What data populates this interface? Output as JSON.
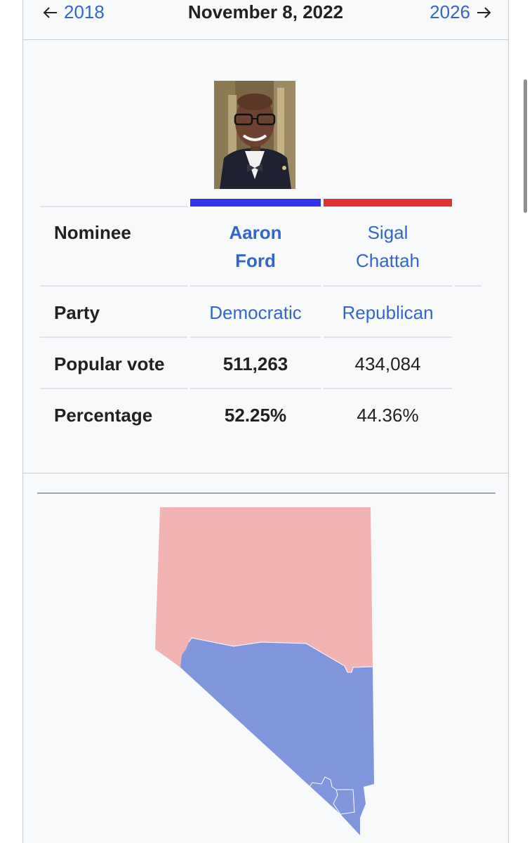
{
  "nav": {
    "prev_label": "2018",
    "date": "November 8, 2022",
    "next_label": "2026"
  },
  "candidates": {
    "row_labels": {
      "nominee": "Nominee",
      "party": "Party",
      "popular_vote": "Popular vote",
      "percentage": "Percentage"
    },
    "dem": {
      "name_line1": "Aaron",
      "name_line2": "Ford",
      "party": "Democratic",
      "popular_vote": "511,263",
      "percentage": "52.25%",
      "color": "#3333ee"
    },
    "rep": {
      "name_line1": "Sigal",
      "name_line2": "Chattah",
      "party": "Republican",
      "popular_vote": "434,084",
      "percentage": "44.36%",
      "color": "#dd3333"
    }
  },
  "map": {
    "rep_color": "#f2b3b3",
    "dem_color": "#7f96dd"
  },
  "colors": {
    "link": "#3366cc",
    "infobox_bg": "#f8f9fa",
    "border": "#c8ccd1"
  }
}
